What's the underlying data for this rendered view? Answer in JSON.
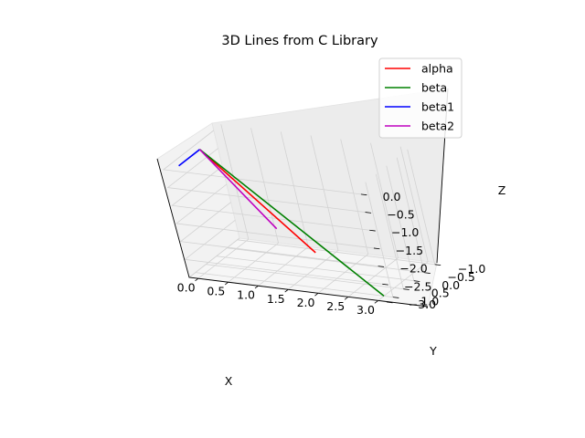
{
  "chart_data": {
    "type": "line3d",
    "title": "3D Lines from C Library",
    "xlabel": "X",
    "ylabel": "Y",
    "zlabel": "Z",
    "xlim": [
      -0.15,
      3.15
    ],
    "ylim": [
      -1.1,
      1.3
    ],
    "zlim": [
      -3.0,
      0.2
    ],
    "xticks": [
      "0.0",
      "0.5",
      "1.0",
      "1.5",
      "2.0",
      "2.5",
      "3.0"
    ],
    "yticks": [
      "−1.0",
      "−0.5",
      "0.0",
      "0.5",
      "1.0"
    ],
    "zticks": [
      "0.0",
      "−0.5",
      "−1.0",
      "−1.5",
      "−2.0",
      "−2.5",
      "−3.0"
    ],
    "grid": true,
    "legend_position": "top-right",
    "series": [
      {
        "name": "alpha",
        "color": "#ff0000",
        "points": [
          [
            0,
            0,
            0
          ],
          [
            2.0,
            1.0,
            -2.0
          ]
        ]
      },
      {
        "name": "beta",
        "color": "#008000",
        "points": [
          [
            0,
            0,
            0
          ],
          [
            3.0,
            1.0,
            -3.0
          ]
        ]
      },
      {
        "name": "beta1",
        "color": "#0000ff",
        "points": [
          [
            0,
            0,
            0
          ],
          [
            0.0,
            1.0,
            0.0
          ]
        ]
      },
      {
        "name": "beta2",
        "color": "#bf00bf",
        "points": [
          [
            0,
            0,
            0
          ],
          [
            1.0,
            0.0,
            -2.0
          ]
        ]
      }
    ]
  }
}
